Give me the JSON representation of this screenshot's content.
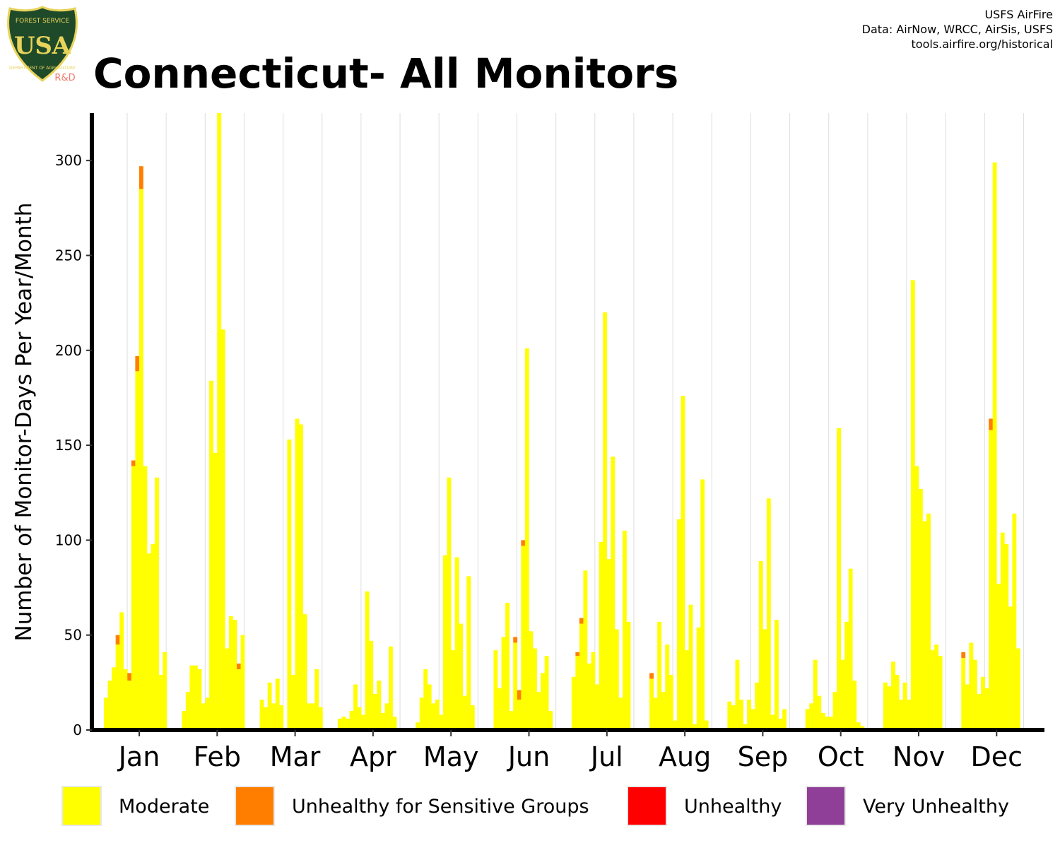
{
  "title": "Connecticut- All Monitors",
  "credits": [
    "USFS AirFire",
    "Data: AirNow, WRCC, AirSis, USFS",
    "tools.airfire.org/historical"
  ],
  "logo": {
    "agency_text": "FOREST SERVICE",
    "letters": "USA",
    "bottom_text": "DEPARTMENT OF AGRICULTURE",
    "subtext": "R&D"
  },
  "colors": {
    "moderate": "#FFFF00",
    "usg": "#FF7E00",
    "unhealthy": "#FF0000",
    "very_unhealthy": "#8F3F97",
    "logo_green": "#1f4a2a",
    "logo_gold": "#e8d35a",
    "logo_sub": "#f07a6a"
  },
  "chart_data": {
    "type": "bar",
    "stacked": true,
    "xlabel": "",
    "ylabel": "Number of Monitor-Days Per Year/Month",
    "ylim": [
      0,
      325
    ],
    "yticks": [
      0,
      50,
      100,
      150,
      200,
      250,
      300
    ],
    "grid": "vertical",
    "legend_position": "bottom",
    "categories": [
      "Jan",
      "Feb",
      "Mar",
      "Apr",
      "May",
      "Jun",
      "Jul",
      "Aug",
      "Sep",
      "Oct",
      "Nov",
      "Dec"
    ],
    "series": [
      {
        "name": "Moderate",
        "color_key": "moderate",
        "values": [
          [
            17,
            26,
            33,
            45,
            62,
            32,
            26,
            139,
            189,
            285,
            139,
            93,
            98,
            133,
            29,
            41
          ],
          [
            10,
            20,
            34,
            34,
            32,
            14,
            17,
            184,
            146,
            330,
            211,
            43,
            60,
            58,
            32,
            50
          ],
          [
            16,
            12,
            25,
            14,
            27,
            13,
            0,
            153,
            29,
            164,
            161,
            61,
            14,
            14,
            32,
            12
          ],
          [
            6,
            7,
            6,
            10,
            24,
            12,
            8,
            73,
            47,
            19,
            26,
            9,
            14,
            44,
            7,
            0
          ],
          [
            4,
            17,
            32,
            24,
            14,
            16,
            8,
            92,
            133,
            42,
            91,
            56,
            18,
            81,
            13,
            0
          ],
          [
            42,
            22,
            49,
            67,
            10,
            46,
            16,
            97,
            201,
            52,
            43,
            20,
            30,
            39,
            10,
            0
          ],
          [
            28,
            39,
            56,
            84,
            35,
            41,
            24,
            99,
            220,
            90,
            144,
            53,
            17,
            105,
            57,
            0
          ],
          [
            27,
            17,
            57,
            20,
            45,
            29,
            5,
            111,
            176,
            42,
            66,
            3,
            54,
            132,
            5,
            0
          ],
          [
            15,
            13,
            37,
            16,
            3,
            16,
            11,
            25,
            89,
            53,
            122,
            8,
            58,
            6,
            11,
            0
          ],
          [
            11,
            14,
            37,
            18,
            9,
            7,
            7,
            20,
            159,
            37,
            57,
            85,
            26,
            4,
            2,
            0
          ],
          [
            25,
            23,
            36,
            29,
            16,
            25,
            16,
            237,
            139,
            127,
            110,
            114,
            42,
            45,
            39,
            0
          ],
          [
            38,
            24,
            46,
            37,
            19,
            28,
            22,
            158,
            299,
            77,
            104,
            98,
            65,
            114,
            43,
            0
          ]
        ]
      },
      {
        "name": "Unhealthy for Sensitive Groups",
        "color_key": "usg",
        "values": [
          [
            0,
            0,
            0,
            5,
            0,
            0,
            4,
            3,
            8,
            12,
            0,
            0,
            0,
            0,
            0,
            0
          ],
          [
            0,
            0,
            0,
            0,
            0,
            0,
            0,
            0,
            0,
            5,
            0,
            0,
            0,
            0,
            3,
            0
          ],
          [
            0,
            0,
            0,
            0,
            0,
            0,
            0,
            0,
            0,
            0,
            0,
            0,
            0,
            0,
            0,
            0
          ],
          [
            0,
            0,
            0,
            0,
            0,
            0,
            0,
            0,
            0,
            0,
            0,
            0,
            0,
            0,
            0,
            0
          ],
          [
            0,
            0,
            0,
            0,
            0,
            0,
            0,
            0,
            0,
            0,
            0,
            0,
            0,
            0,
            0,
            0
          ],
          [
            0,
            0,
            0,
            0,
            0,
            3,
            5,
            3,
            0,
            0,
            0,
            0,
            0,
            0,
            0,
            0
          ],
          [
            0,
            2,
            3,
            0,
            0,
            0,
            0,
            0,
            0,
            0,
            0,
            0,
            0,
            0,
            0,
            0
          ],
          [
            3,
            0,
            0,
            0,
            0,
            0,
            0,
            0,
            0,
            0,
            0,
            0,
            0,
            0,
            0,
            0
          ],
          [
            0,
            0,
            0,
            0,
            0,
            0,
            0,
            0,
            0,
            0,
            0,
            0,
            0,
            0,
            0,
            0
          ],
          [
            0,
            0,
            0,
            0,
            0,
            0,
            0,
            0,
            0,
            0,
            0,
            0,
            0,
            0,
            0,
            0
          ],
          [
            0,
            0,
            0,
            0,
            0,
            0,
            0,
            0,
            0,
            0,
            0,
            0,
            0,
            0,
            0,
            0
          ],
          [
            3,
            0,
            0,
            0,
            0,
            0,
            0,
            6,
            0,
            0,
            0,
            0,
            0,
            0,
            0,
            0
          ]
        ]
      },
      {
        "name": "Unhealthy",
        "color_key": "unhealthy",
        "values": [
          [
            0,
            0,
            0,
            0,
            0,
            0,
            0,
            0,
            0,
            0,
            0,
            0,
            0,
            0,
            0,
            0
          ],
          [
            0,
            0,
            0,
            0,
            0,
            0,
            0,
            0,
            0,
            0,
            0,
            0,
            0,
            0,
            0,
            0
          ],
          [
            0,
            0,
            0,
            0,
            0,
            0,
            0,
            0,
            0,
            0,
            0,
            0,
            0,
            0,
            0,
            0
          ],
          [
            0,
            0,
            0,
            0,
            0,
            0,
            0,
            0,
            0,
            0,
            0,
            0,
            0,
            0,
            0,
            0
          ],
          [
            0,
            0,
            0,
            0,
            0,
            0,
            0,
            0,
            0,
            0,
            0,
            0,
            0,
            0,
            0,
            0
          ],
          [
            0,
            0,
            0,
            0,
            0,
            0,
            0,
            0,
            0,
            0,
            0,
            0,
            0,
            0,
            0,
            0
          ],
          [
            0,
            0,
            0,
            0,
            0,
            0,
            0,
            0,
            0,
            0,
            0,
            0,
            0,
            0,
            0,
            0
          ],
          [
            0,
            0,
            0,
            0,
            0,
            0,
            0,
            0,
            0,
            0,
            0,
            0,
            0,
            0,
            0,
            0
          ],
          [
            0,
            0,
            0,
            0,
            0,
            0,
            0,
            0,
            0,
            0,
            0,
            0,
            0,
            0,
            0,
            0
          ],
          [
            0,
            0,
            0,
            0,
            0,
            0,
            0,
            0,
            0,
            0,
            0,
            0,
            0,
            0,
            0,
            0
          ],
          [
            0,
            0,
            0,
            0,
            0,
            0,
            0,
            0,
            0,
            0,
            0,
            0,
            0,
            0,
            0,
            0
          ],
          [
            0,
            0,
            0,
            0,
            0,
            0,
            0,
            0,
            0,
            0,
            0,
            0,
            0,
            0,
            0,
            0
          ]
        ]
      },
      {
        "name": "Very Unhealthy",
        "color_key": "very_unhealthy",
        "values": [
          [
            0,
            0,
            0,
            0,
            0,
            0,
            0,
            0,
            0,
            0,
            0,
            0,
            0,
            0,
            0,
            0
          ],
          [
            0,
            0,
            0,
            0,
            0,
            0,
            0,
            0,
            0,
            0,
            0,
            0,
            0,
            0,
            0,
            0
          ],
          [
            0,
            0,
            0,
            0,
            0,
            0,
            0,
            0,
            0,
            0,
            0,
            0,
            0,
            0,
            0,
            0
          ],
          [
            0,
            0,
            0,
            0,
            0,
            0,
            0,
            0,
            0,
            0,
            0,
            0,
            0,
            0,
            0,
            0
          ],
          [
            0,
            0,
            0,
            0,
            0,
            0,
            0,
            0,
            0,
            0,
            0,
            0,
            0,
            0,
            0,
            0
          ],
          [
            0,
            0,
            0,
            0,
            0,
            0,
            0,
            0,
            0,
            0,
            0,
            0,
            0,
            0,
            0,
            0
          ],
          [
            0,
            0,
            0,
            0,
            0,
            0,
            0,
            0,
            0,
            0,
            0,
            0,
            0,
            0,
            0,
            0
          ],
          [
            0,
            0,
            0,
            0,
            0,
            0,
            0,
            0,
            0,
            0,
            0,
            0,
            0,
            0,
            0,
            0
          ],
          [
            0,
            0,
            0,
            0,
            0,
            0,
            0,
            0,
            0,
            0,
            0,
            0,
            0,
            0,
            0,
            0
          ],
          [
            0,
            0,
            0,
            0,
            0,
            0,
            0,
            0,
            0,
            0,
            0,
            0,
            0,
            0,
            0,
            0
          ],
          [
            0,
            0,
            0,
            0,
            0,
            0,
            0,
            0,
            0,
            0,
            0,
            0,
            0,
            0,
            0,
            0
          ],
          [
            0,
            0,
            0,
            0,
            0,
            0,
            0,
            0,
            0,
            0,
            0,
            0,
            0,
            0,
            0,
            0
          ]
        ]
      }
    ]
  }
}
